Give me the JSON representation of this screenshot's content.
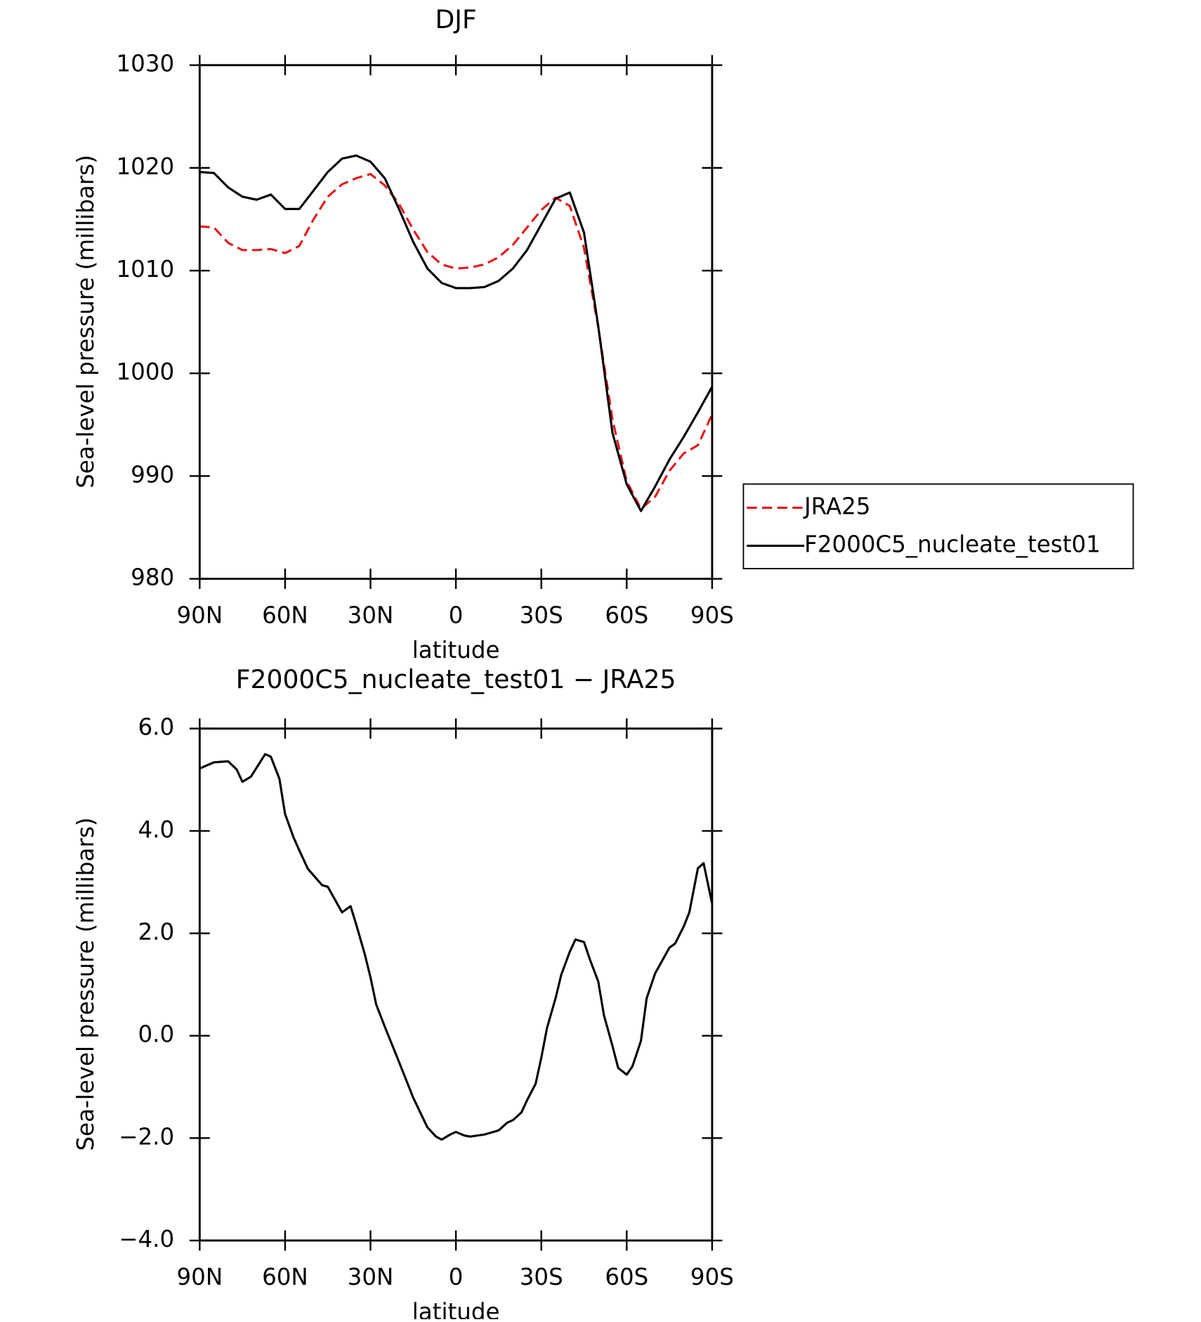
{
  "chart_data": [
    {
      "type": "line",
      "title": "DJF",
      "xlabel": "latitude",
      "ylabel": "Sea-level pressure (millibars)",
      "x": [
        90,
        85,
        80,
        75,
        70,
        65,
        60,
        55,
        50,
        45,
        40,
        35,
        30,
        25,
        20,
        15,
        10,
        5,
        0,
        -5,
        -10,
        -15,
        -20,
        -25,
        -30,
        -35,
        -40,
        -45,
        -50,
        -55,
        -60,
        -65,
        -70,
        -75,
        -80,
        -85,
        -90
      ],
      "series": [
        {
          "name": "JRA25",
          "color": "#e31a1c",
          "linestyle": "dashed",
          "values": [
            1014.3,
            1014.2,
            1012.7,
            1012.0,
            1012.0,
            1012.1,
            1011.7,
            1012.4,
            1015.0,
            1017.2,
            1018.4,
            1019.0,
            1019.4,
            1018.3,
            1016.5,
            1014.0,
            1011.8,
            1010.6,
            1010.2,
            1010.3,
            1010.6,
            1011.3,
            1012.5,
            1014.2,
            1015.9,
            1017.1,
            1016.3,
            1012.2,
            1004.5,
            995.5,
            989.5,
            986.8,
            988.0,
            990.5,
            992.2,
            993.0,
            996.0
          ]
        },
        {
          "name": "F2000C5_nucleate_test01",
          "color": "#000000",
          "linestyle": "solid",
          "values": [
            1019.6,
            1019.5,
            1018.1,
            1017.2,
            1016.9,
            1017.4,
            1016.0,
            1016.0,
            1017.8,
            1019.6,
            1020.9,
            1021.2,
            1020.6,
            1019.0,
            1016.0,
            1012.8,
            1010.2,
            1008.8,
            1008.3,
            1008.3,
            1008.4,
            1009.0,
            1010.2,
            1012.0,
            1014.5,
            1017.0,
            1017.6,
            1013.7,
            1004.6,
            994.2,
            989.2,
            986.6,
            989.0,
            991.6,
            993.8,
            996.2,
            998.7
          ]
        }
      ],
      "xlim": [
        90,
        -90
      ],
      "xticks": [
        {
          "value": 90,
          "label": "90N"
        },
        {
          "value": 60,
          "label": "60N"
        },
        {
          "value": 30,
          "label": "30N"
        },
        0,
        {
          "value": -30,
          "label": "30S"
        },
        {
          "value": -60,
          "label": "60S"
        },
        {
          "value": -90,
          "label": "90S"
        }
      ],
      "ylim": [
        980,
        1030
      ],
      "yticks": [
        980,
        990,
        1000,
        1010,
        1020,
        1030
      ],
      "legend": "right"
    },
    {
      "type": "line",
      "title": "F2000C5_nucleate_test01 − JRA25",
      "xlabel": "latitude",
      "ylabel": "Sea-level pressure (millibars)",
      "x": [
        90,
        85,
        80,
        77,
        75,
        72,
        67,
        65,
        62,
        60,
        57,
        55,
        52,
        47,
        45,
        40,
        37,
        35,
        32,
        30,
        28,
        25,
        20,
        15,
        10,
        7,
        5,
        2,
        0,
        -3,
        -5,
        -10,
        -15,
        -18,
        -20,
        -23,
        -25,
        -28,
        -30,
        -32,
        -35,
        -37,
        -40,
        -42,
        -45,
        -47,
        -50,
        -52,
        -55,
        -57,
        -60,
        -62,
        -65,
        -67,
        -70,
        -72,
        -75,
        -77,
        -80,
        -82,
        -85,
        -87,
        -90
      ],
      "series": [
        {
          "name": "F2000C5_nucleate_test01 − JRA25",
          "color": "#000000",
          "linestyle": "solid",
          "values": [
            5.22,
            5.34,
            5.36,
            5.2,
            4.96,
            5.06,
            5.5,
            5.45,
            5.02,
            4.33,
            3.87,
            3.62,
            3.26,
            2.94,
            2.91,
            2.41,
            2.53,
            2.17,
            1.59,
            1.14,
            0.61,
            0.18,
            -0.51,
            -1.21,
            -1.79,
            -1.97,
            -2.03,
            -1.93,
            -1.88,
            -1.95,
            -1.97,
            -1.93,
            -1.85,
            -1.7,
            -1.65,
            -1.5,
            -1.26,
            -0.94,
            -0.43,
            0.15,
            0.73,
            1.19,
            1.64,
            1.88,
            1.83,
            1.5,
            1.06,
            0.4,
            -0.2,
            -0.63,
            -0.76,
            -0.6,
            -0.1,
            0.73,
            1.22,
            1.42,
            1.72,
            1.8,
            2.13,
            2.41,
            3.27,
            3.37,
            2.58
          ]
        }
      ],
      "xlim": [
        90,
        -90
      ],
      "xticks": [
        {
          "value": 90,
          "label": "90N"
        },
        {
          "value": 60,
          "label": "60N"
        },
        {
          "value": 30,
          "label": "30N"
        },
        0,
        {
          "value": -30,
          "label": "30S"
        },
        {
          "value": -60,
          "label": "60S"
        },
        {
          "value": -90,
          "label": "90S"
        }
      ],
      "ylim": [
        -4,
        6
      ],
      "yticks": [
        {
          "value": -4,
          "label": "−4.0"
        },
        {
          "value": -2,
          "label": "−2.0"
        },
        {
          "value": 0,
          "label": "0.0"
        },
        {
          "value": 2,
          "label": "2.0"
        },
        {
          "value": 4,
          "label": "4.0"
        },
        {
          "value": 6,
          "label": "6.0"
        }
      ]
    }
  ]
}
